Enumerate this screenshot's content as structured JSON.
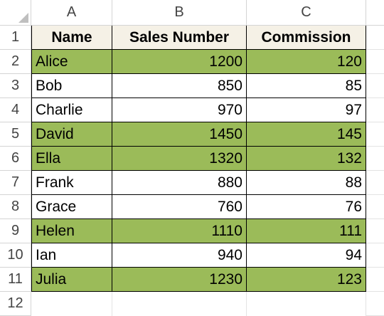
{
  "columns": [
    "A",
    "B",
    "C"
  ],
  "row_numbers": [
    "1",
    "2",
    "3",
    "4",
    "5",
    "6",
    "7",
    "8",
    "9",
    "10",
    "11",
    "12"
  ],
  "table": {
    "headers": [
      "Name",
      "Sales Number",
      "Commission"
    ],
    "rows": [
      {
        "name": "Alice",
        "sales": "1200",
        "commission": "120",
        "highlight": true
      },
      {
        "name": "Bob",
        "sales": "850",
        "commission": "85",
        "highlight": false
      },
      {
        "name": "Charlie",
        "sales": "970",
        "commission": "97",
        "highlight": false
      },
      {
        "name": "David",
        "sales": "1450",
        "commission": "145",
        "highlight": true
      },
      {
        "name": "Ella",
        "sales": "1320",
        "commission": "132",
        "highlight": true
      },
      {
        "name": "Frank",
        "sales": "880",
        "commission": "88",
        "highlight": false
      },
      {
        "name": "Grace",
        "sales": "760",
        "commission": "76",
        "highlight": false
      },
      {
        "name": "Helen",
        "sales": "1110",
        "commission": "111",
        "highlight": true
      },
      {
        "name": "Ian",
        "sales": "940",
        "commission": "94",
        "highlight": false
      },
      {
        "name": "Julia",
        "sales": "1230",
        "commission": "123",
        "highlight": true
      }
    ]
  },
  "colors": {
    "highlight": "#9bbb59",
    "header_fill": "#f5f1e6",
    "gridline": "#d4d4d4"
  }
}
